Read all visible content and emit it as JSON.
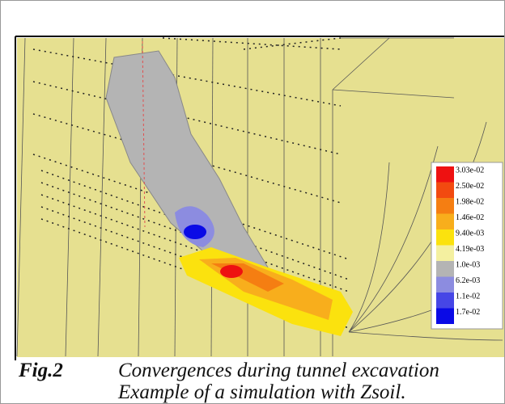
{
  "figure": {
    "legend": [
      {
        "label": "3.03e-02",
        "color": "#ee1111"
      },
      {
        "label": "2.50e-02",
        "color": "#f24a10"
      },
      {
        "label": "1.98e-02",
        "color": "#f57e12"
      },
      {
        "label": "1.46e-02",
        "color": "#f8ae1c"
      },
      {
        "label": "9.40e-03",
        "color": "#fbe20e"
      },
      {
        "label": "4.19e-03",
        "color": "#f4f0a0"
      },
      {
        "label": "1.0e-03",
        "color": "#b4b4b4"
      },
      {
        "label": "6.2e-03",
        "color": "#8c8ce0"
      },
      {
        "label": "1.1e-02",
        "color": "#4646e6"
      },
      {
        "label": "1.7e-02",
        "color": "#0a0ae6"
      }
    ],
    "caption": {
      "label": "Fig.2",
      "line1": "Convergences during tunnel excavation",
      "line2": "Example of a simulation with Zsoil."
    }
  }
}
